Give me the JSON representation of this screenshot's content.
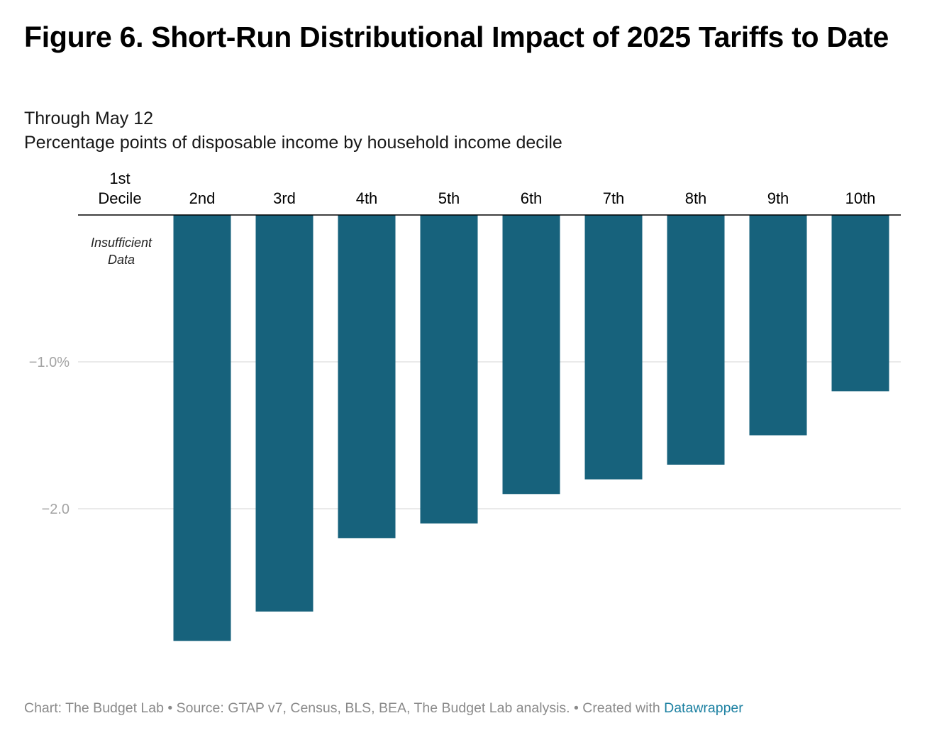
{
  "title": "Figure 6. Short-Run Distributional Impact of 2025 Tariffs to Date",
  "subtitle_line1": "Through May 12",
  "subtitle_line2": "Percentage points of disposable income by household income decile",
  "colors": {
    "bar": "#17627c",
    "grid": "#e3e3e3",
    "axis": "#000000",
    "tick_text": "#a3a3a3",
    "footer_link": "#1d81a2"
  },
  "chart_data": {
    "type": "bar",
    "title": "Figure 6. Short-Run Distributional Impact of 2025 Tariffs to Date",
    "subtitle": "Through May 12 — Percentage points of disposable income by household income decile",
    "categories": [
      "1st Decile",
      "2nd",
      "3rd",
      "4th",
      "5th",
      "6th",
      "7th",
      "8th",
      "9th",
      "10th"
    ],
    "values": [
      null,
      -2.9,
      -2.7,
      -2.2,
      -2.1,
      -1.9,
      -1.8,
      -1.7,
      -1.5,
      -1.2
    ],
    "ylim": [
      -3.0,
      0
    ],
    "yticks": [
      {
        "value": -1.0,
        "label": "−1.0%"
      },
      {
        "value": -2.0,
        "label": "−2.0"
      }
    ],
    "category_axis_position": "top",
    "grid": true,
    "annotations": [
      {
        "category": "1st Decile",
        "text_line1": "Insufficient",
        "text_line2": "Data"
      }
    ]
  },
  "footer": {
    "text": "Chart: The Budget Lab • Source: GTAP v7, Census, BLS, BEA, The Budget Lab analysis. • Created with ",
    "link": "Datawrapper"
  }
}
